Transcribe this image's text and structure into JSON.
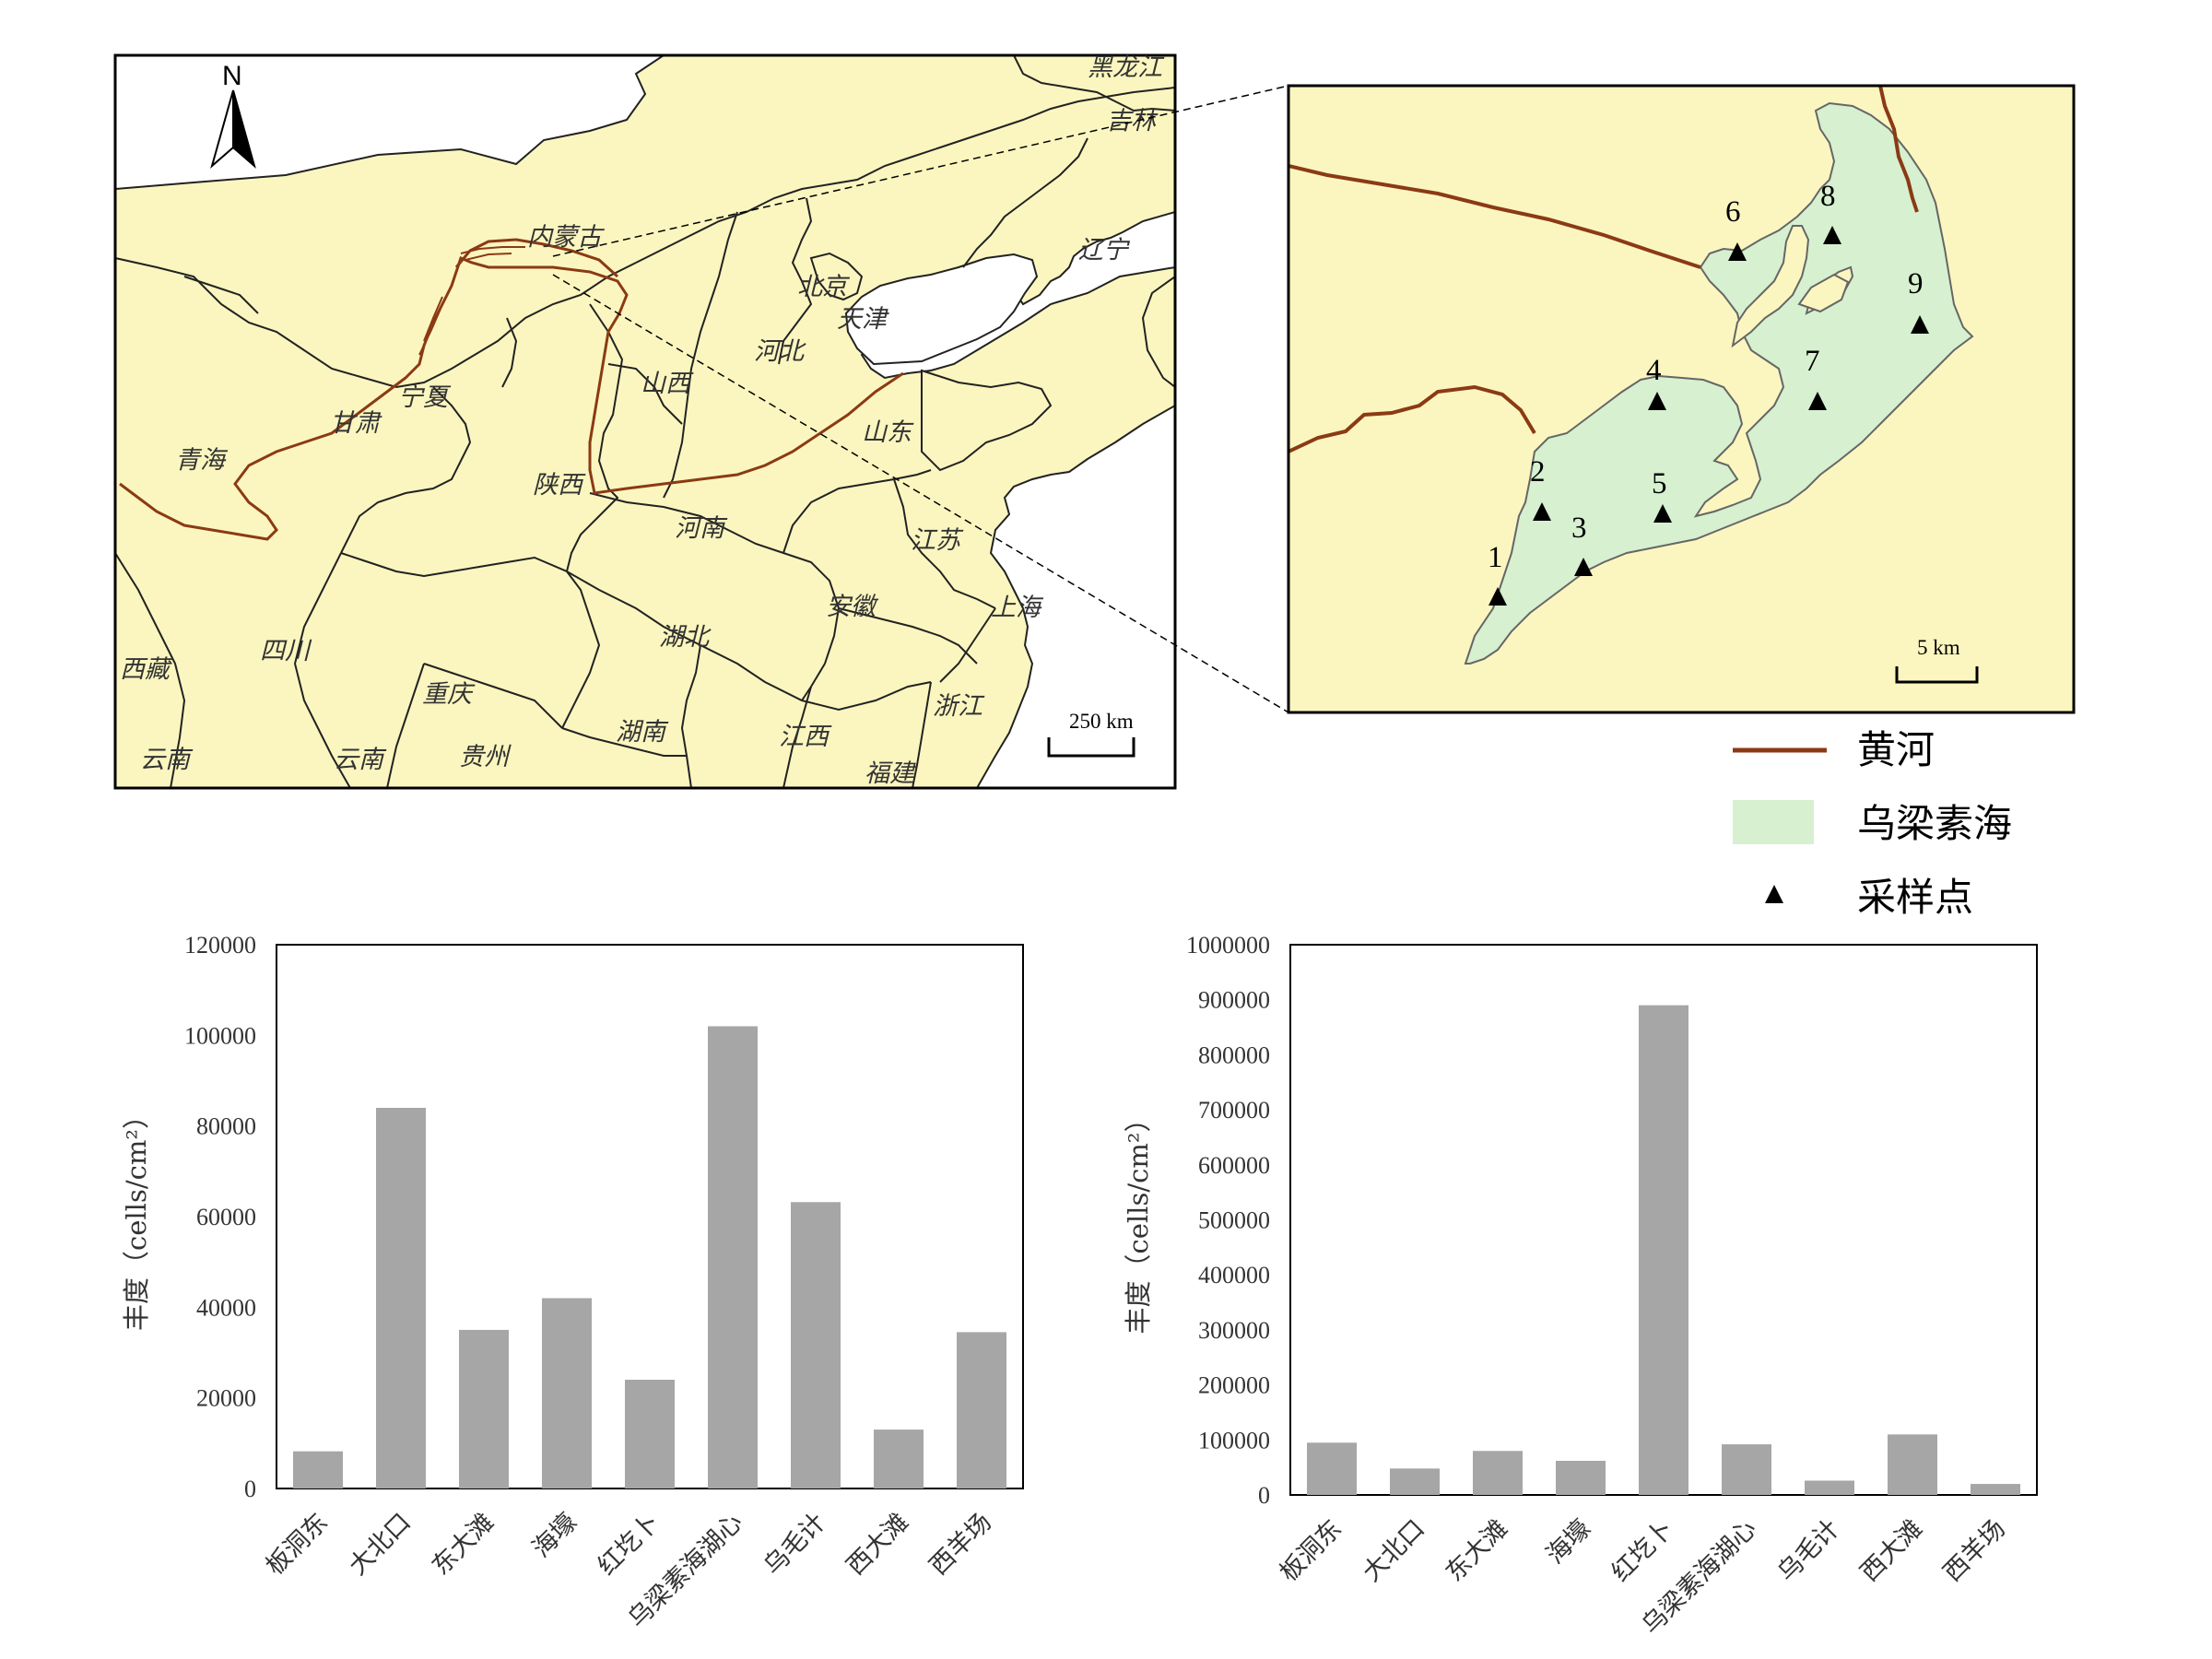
{
  "colors": {
    "land": "#fbf6bf",
    "sea": "#ffffff",
    "border": "#222222",
    "river": "#8b3a14",
    "lake": "#d6f0d0",
    "bar": "#a6a6a6"
  },
  "map": {
    "north": "N",
    "scale": "250 km",
    "provinces": [
      {
        "name": "黑龙江"
      },
      {
        "name": "吉林"
      },
      {
        "name": "内蒙古"
      },
      {
        "name": "辽宁"
      },
      {
        "name": "北京"
      },
      {
        "name": "天津"
      },
      {
        "name": "河北"
      },
      {
        "name": "宁夏"
      },
      {
        "name": "山西"
      },
      {
        "name": "山东"
      },
      {
        "name": "甘肃"
      },
      {
        "name": "青海"
      },
      {
        "name": "陕西"
      },
      {
        "name": "河南"
      },
      {
        "name": "江苏"
      },
      {
        "name": "上海"
      },
      {
        "name": "安徽"
      },
      {
        "name": "西藏"
      },
      {
        "name": "四川"
      },
      {
        "name": "湖北"
      },
      {
        "name": "重庆"
      },
      {
        "name": "浙江"
      },
      {
        "name": "云南"
      },
      {
        "name": "贵州"
      },
      {
        "name": "湖南"
      },
      {
        "name": "江西"
      },
      {
        "name": "福建"
      }
    ]
  },
  "inset": {
    "scale": "5 km",
    "sites": [
      "1",
      "2",
      "3",
      "4",
      "5",
      "6",
      "7",
      "8",
      "9"
    ]
  },
  "legend": {
    "river": "黄河",
    "lake": "乌梁素海",
    "site": "采样点"
  },
  "chart_data": [
    {
      "type": "bar",
      "categories": [
        "板洞东",
        "大北口",
        "东大滩",
        "海壕",
        "红圪卜",
        "乌梁素海湖心",
        "乌毛计",
        "西大滩",
        "西羊场"
      ],
      "values": [
        8200,
        84000,
        35000,
        42000,
        24000,
        102000,
        63200,
        13000,
        34500
      ],
      "ylabel": "丰度（cells/cm²）",
      "ylim": [
        0,
        120000
      ],
      "yticks": [
        "0",
        "20000",
        "40000",
        "60000",
        "80000",
        "100000",
        "120000"
      ],
      "grid": false,
      "legend": false
    },
    {
      "type": "bar",
      "categories": [
        "板洞东",
        "大北口",
        "东大滩",
        "海壕",
        "红圪卜",
        "乌梁素海湖心",
        "乌毛计",
        "西大滩",
        "西羊场"
      ],
      "values": [
        95000,
        48000,
        80000,
        62000,
        890000,
        92000,
        26000,
        110000,
        20000
      ],
      "ylabel": "丰度（cells/cm²）",
      "ylim": [
        0,
        1000000
      ],
      "yticks": [
        "0",
        "100000",
        "200000",
        "300000",
        "400000",
        "500000",
        "600000",
        "700000",
        "800000",
        "900000",
        "1000000"
      ],
      "grid": false,
      "legend": false
    }
  ]
}
